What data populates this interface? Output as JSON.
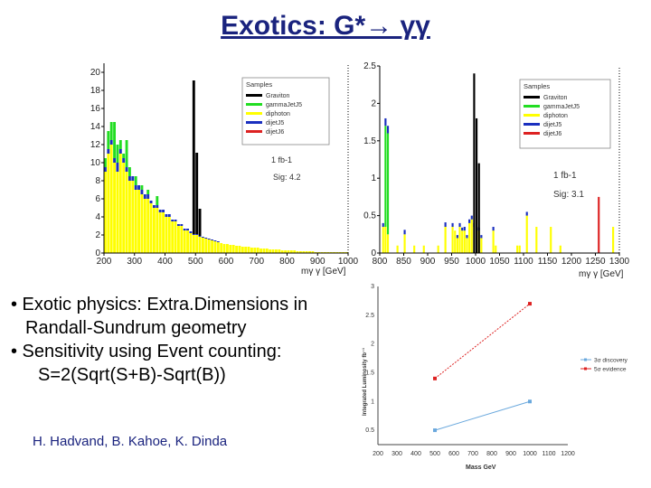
{
  "title": "Exotics: G*→ γγ",
  "bullets": [
    "• Exotic physics: Extra.Dimensions in",
    "Randall-Sundrum geometry",
    "• Sensitivity using Event counting:",
    "S=2(Sqrt(S+B)-Sqrt(B))"
  ],
  "authors": "H. Hadvand, B. Kahoe, K. Dinda",
  "colors": {
    "graviton": "#000000",
    "gammajet": "#22dd22",
    "diphoton": "#ffff00",
    "dijetJ5": "#1a2fbf",
    "dijetJ6": "#dd2222",
    "discovery": "#6aa8dd",
    "evidence": "#dd2222"
  },
  "chart_data": [
    {
      "type": "bar",
      "xlabel": "mγ γ [GeV]",
      "ylabel": "",
      "xlim": [
        200,
        1000
      ],
      "ylim": [
        0,
        21
      ],
      "xticks": [
        "200",
        "300",
        "400",
        "500",
        "600",
        "700",
        "800",
        "900",
        "1000"
      ],
      "yticks": [
        "0",
        "2",
        "4",
        "6",
        "8",
        "10",
        "12",
        "14",
        "16",
        "18",
        "20"
      ],
      "legend": {
        "title": "Samples",
        "entries": [
          "Graviton",
          "gammaJetJ5",
          "diphoton",
          "dijetJ5",
          "dijetJ6"
        ],
        "placement": "top-right"
      },
      "annotations": [
        "1 fb-1",
        "Sig: 4.2"
      ],
      "bin_width": 10,
      "x": [
        200,
        210,
        220,
        230,
        240,
        250,
        260,
        270,
        280,
        290,
        300,
        310,
        320,
        330,
        340,
        350,
        360,
        370,
        380,
        390,
        400,
        410,
        420,
        430,
        440,
        450,
        460,
        470,
        480,
        490,
        500,
        510,
        520,
        530,
        540,
        550,
        560,
        570,
        580,
        590,
        600,
        610,
        620,
        630,
        640,
        650,
        660,
        670,
        680,
        690,
        700,
        710,
        720,
        730,
        740,
        750,
        760,
        770,
        780,
        790,
        800,
        810,
        820,
        830,
        840,
        850,
        860,
        870,
        880,
        890,
        900,
        910,
        920,
        930,
        940,
        950,
        960,
        970,
        980,
        990
      ],
      "series": [
        {
          "name": "diphoton",
          "values": [
            9,
            11,
            12,
            10,
            9,
            11,
            10,
            9,
            8,
            8,
            7,
            7,
            6.5,
            6,
            6,
            5.5,
            5,
            5,
            4.5,
            4.5,
            4,
            4,
            3.5,
            3.5,
            3,
            3,
            2.5,
            2.5,
            2.2,
            2,
            2,
            1.8,
            1.7,
            1.6,
            1.5,
            1.4,
            1.3,
            1.2,
            1.1,
            1,
            1,
            0.9,
            0.9,
            0.8,
            0.8,
            0.7,
            0.7,
            0.7,
            0.6,
            0.6,
            0.6,
            0.5,
            0.5,
            0.5,
            0.4,
            0.4,
            0.4,
            0.4,
            0.3,
            0.3,
            0.3,
            0.3,
            0.3,
            0.2,
            0.2,
            0.2,
            0.2,
            0.2,
            0.2,
            0.1,
            0.1,
            0.1,
            0.1,
            0.1,
            0.1,
            0.1,
            0.1,
            0.1,
            0.1,
            0.1
          ]
        },
        {
          "name": "gammaJetJ5",
          "values": [
            1,
            2,
            2,
            4,
            2,
            1,
            0.5,
            3,
            1,
            0,
            1,
            0,
            0.5,
            0,
            0.5,
            0,
            0,
            1,
            0,
            0,
            0,
            0,
            0,
            0,
            0,
            0,
            0,
            0,
            0,
            0,
            0,
            0,
            0,
            0,
            0,
            0,
            0,
            0,
            0,
            0,
            0,
            0,
            0,
            0,
            0,
            0,
            0,
            0,
            0,
            0,
            0,
            0,
            0,
            0,
            0,
            0,
            0,
            0,
            0,
            0,
            0,
            0,
            0,
            0,
            0,
            0,
            0,
            0,
            0,
            0,
            0,
            0,
            0,
            0,
            0,
            0,
            0,
            0,
            0,
            0
          ]
        },
        {
          "name": "dijetJ5",
          "values": [
            0.5,
            0.5,
            0.5,
            0.5,
            1,
            0.5,
            0.5,
            0.5,
            0.5,
            0.5,
            0.5,
            0.5,
            0.5,
            0.5,
            0.5,
            0.3,
            0.3,
            0.3,
            0.3,
            0.3,
            0.3,
            0.3,
            0.2,
            0.2,
            0.2,
            0.2,
            0.2,
            0.2,
            0.2,
            0.1,
            0.1,
            0.1,
            0.1,
            0.1,
            0.1,
            0.1,
            0.1,
            0.1,
            0,
            0,
            0,
            0,
            0,
            0,
            0,
            0,
            0,
            0,
            0,
            0,
            0,
            0,
            0,
            0,
            0,
            0,
            0,
            0,
            0,
            0,
            0,
            0,
            0,
            0,
            0,
            0,
            0,
            0,
            0,
            0,
            0,
            0,
            0,
            0,
            0,
            0,
            0,
            0,
            0,
            0
          ]
        },
        {
          "name": "Graviton",
          "values": [
            0,
            0,
            0,
            0,
            0,
            0,
            0,
            0,
            0,
            0,
            0,
            0,
            0,
            0,
            0,
            0,
            0,
            0,
            0,
            0,
            0,
            0,
            0,
            0,
            0,
            0,
            0,
            0,
            0,
            17,
            9,
            3,
            0,
            0,
            0,
            0,
            0,
            0,
            0,
            0,
            0,
            0,
            0,
            0,
            0,
            0,
            0,
            0,
            0,
            0,
            0,
            0,
            0,
            0,
            0,
            0,
            0,
            0,
            0,
            0,
            0,
            0,
            0,
            0,
            0,
            0,
            0,
            0,
            0,
            0,
            0,
            0,
            0,
            0,
            0,
            0,
            0,
            0,
            0,
            0
          ]
        }
      ]
    },
    {
      "type": "bar",
      "xlabel": "mγ γ [GeV]",
      "ylabel": "",
      "xlim": [
        800,
        1300
      ],
      "ylim": [
        0,
        2.5
      ],
      "xticks": [
        "800",
        "850",
        "900",
        "950",
        "1000",
        "1050",
        "1100",
        "1150",
        "1200",
        "1250",
        "1300"
      ],
      "yticks": [
        "0",
        "0.5",
        "1",
        "1.5",
        "2",
        "2.5"
      ],
      "legend": {
        "title": "Samples",
        "entries": [
          "Graviton",
          "gammaJetJ5",
          "diphoton",
          "dijetJ5",
          "dijetJ6"
        ],
        "placement": "top-right"
      },
      "annotations": [
        "1 fb-1",
        "Sig: 3.1"
      ],
      "bin_width": 5,
      "x": [
        805,
        810,
        815,
        835,
        850,
        870,
        890,
        920,
        935,
        950,
        955,
        960,
        965,
        970,
        975,
        980,
        985,
        990,
        995,
        1000,
        1005,
        1010,
        1035,
        1040,
        1085,
        1090,
        1105,
        1125,
        1155,
        1175,
        1255,
        1285
      ],
      "series": [
        {
          "name": "diphoton",
          "values": [
            0.35,
            0.35,
            0.25,
            0.1,
            0.25,
            0.1,
            0.1,
            0.1,
            0.35,
            0.35,
            0.3,
            0.2,
            0.35,
            0.3,
            0.3,
            0.2,
            0.4,
            0.45,
            0.35,
            0.3,
            0.3,
            0.2,
            0.3,
            0.1,
            0.1,
            0.1,
            0.5,
            0.35,
            0.35,
            0.1,
            0,
            0.35
          ]
        },
        {
          "name": "gammaJetJ5",
          "values": [
            0,
            1.35,
            1.35,
            0,
            0,
            0,
            0,
            0,
            0,
            0,
            0,
            0,
            0,
            0,
            0,
            0,
            0,
            0,
            0,
            0,
            0,
            0,
            0,
            0,
            0,
            0,
            0,
            0,
            0,
            0,
            0,
            0
          ]
        },
        {
          "name": "dijetJ5",
          "values": [
            0.05,
            0.1,
            0.1,
            0,
            0.06,
            0,
            0,
            0,
            0.06,
            0.05,
            0,
            0.04,
            0.05,
            0.04,
            0.05,
            0.04,
            0.05,
            0.05,
            0.05,
            0.05,
            0.04,
            0.04,
            0.05,
            0,
            0,
            0,
            0.05,
            0,
            0,
            0,
            0,
            0
          ]
        },
        {
          "name": "Graviton",
          "values": [
            0,
            0,
            0,
            0,
            0,
            0,
            0,
            0,
            0,
            0,
            0,
            0,
            0,
            0,
            0,
            0,
            0,
            0,
            0,
            0,
            0,
            0,
            0,
            0,
            0,
            0,
            0,
            0,
            0,
            0,
            0,
            0
          ]
        },
        {
          "name": "dijetJ6",
          "values": [
            0,
            0,
            0,
            0,
            0,
            0,
            0,
            0,
            0,
            0,
            0,
            0,
            0,
            0,
            0,
            0,
            0,
            0,
            0,
            0,
            0,
            0,
            0,
            0,
            0,
            0,
            0,
            0,
            0,
            0,
            0.75,
            0
          ]
        }
      ],
      "graviton_spikes": [
        {
          "x": 995,
          "y": 2.4
        },
        {
          "x": 1000,
          "y": 1.8
        },
        {
          "x": 1005,
          "y": 1.2
        }
      ]
    },
    {
      "type": "line",
      "xlabel": "Mass GeV",
      "ylabel": "Integrated Luminosity fb⁻¹",
      "xlim": [
        0,
        1200
      ],
      "ylim": [
        0,
        3
      ],
      "xticks": [
        "200",
        "300",
        "400",
        "500",
        "600",
        "700",
        "800",
        "900",
        "1000",
        "1100",
        "1200"
      ],
      "yticks": [
        "0.5",
        "1",
        "1.5",
        "2",
        "2.5",
        "3"
      ],
      "legend": {
        "placement": "right"
      },
      "series": [
        {
          "name": "3σ discovery",
          "x": [
            500,
            1000
          ],
          "y": [
            0.5,
            1.0
          ]
        },
        {
          "name": "5σ evidence",
          "x": [
            500,
            1000
          ],
          "y": [
            1.4,
            2.7
          ]
        }
      ]
    }
  ]
}
